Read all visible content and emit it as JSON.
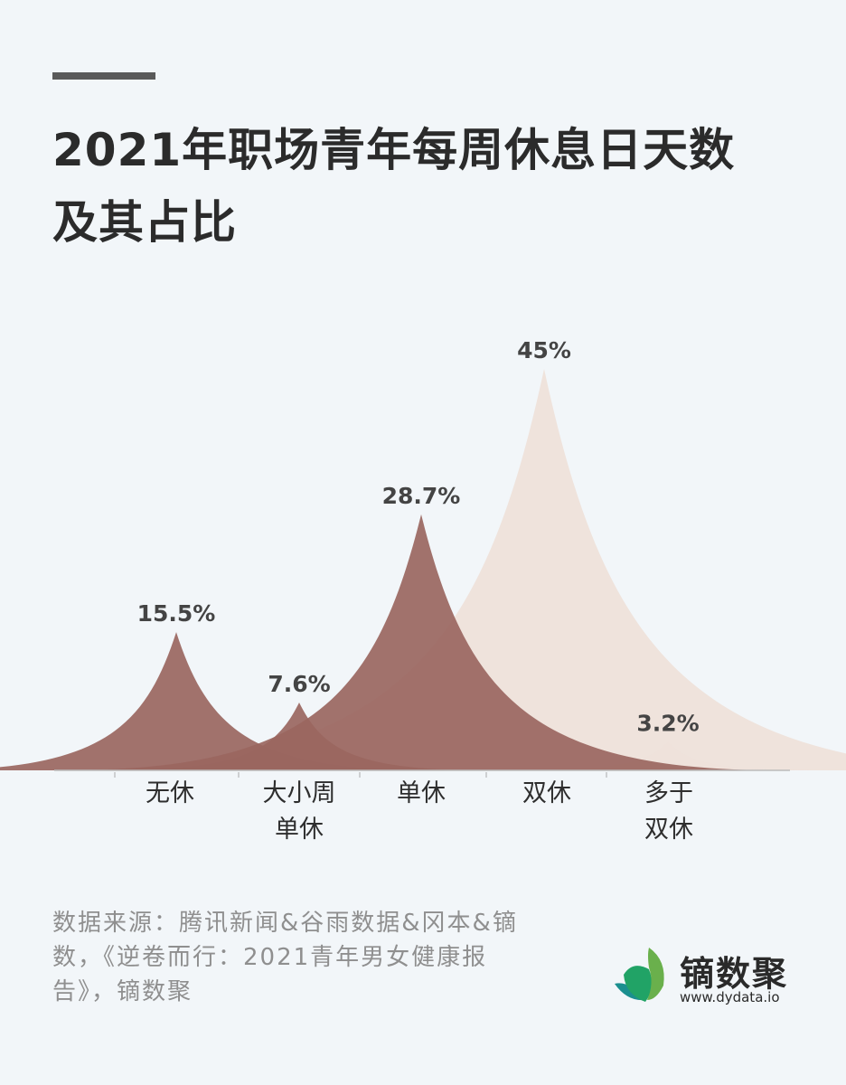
{
  "header": {
    "title_line1": "2021年职场青年每周休息日天数",
    "title_line2": "及其占比"
  },
  "chart_data": {
    "type": "area",
    "title": "2021年职场青年每周休息日天数及其占比",
    "categories": [
      "无休",
      "大小周单休",
      "单休",
      "双休",
      "多于双休"
    ],
    "category_lines": [
      [
        "无休"
      ],
      [
        "大小周",
        "单休"
      ],
      [
        "单休"
      ],
      [
        "双休"
      ],
      [
        "多于",
        "双休"
      ]
    ],
    "values": [
      15.5,
      7.6,
      28.7,
      45,
      3.2
    ],
    "value_labels": [
      "15.5%",
      "7.6%",
      "28.7%",
      "45%",
      "3.2%"
    ],
    "unit": "%",
    "colors": [
      "#9a6660",
      "#9a6660",
      "#9a6660",
      "#eee1da",
      "#eee1da"
    ],
    "xlabel": "",
    "ylabel": "",
    "grid": false,
    "legend": "none",
    "shape": "peak (cusp-shaped area per category)"
  },
  "footer": {
    "source": "数据来源：腾讯新闻&谷雨数据&冈本&镝数，《逆卷而行：2021青年男女健康报告》，镝数聚",
    "source_lines": [
      "数据来源：腾讯新闻&谷雨数据&冈本&镝",
      "数，《逆卷而行：2021青年男女健康报",
      "告》，镝数聚"
    ]
  },
  "brand": {
    "name": "镝数聚",
    "url": "www.dydata.io",
    "leaf_colors": [
      "#6ab04c",
      "#21a366",
      "#1b8f8f"
    ]
  },
  "colors": {
    "background": "#f2f6f9",
    "title": "#2b2b2b",
    "accent_bar": "#5a5a5a",
    "baseline": "#bbbbbb"
  }
}
